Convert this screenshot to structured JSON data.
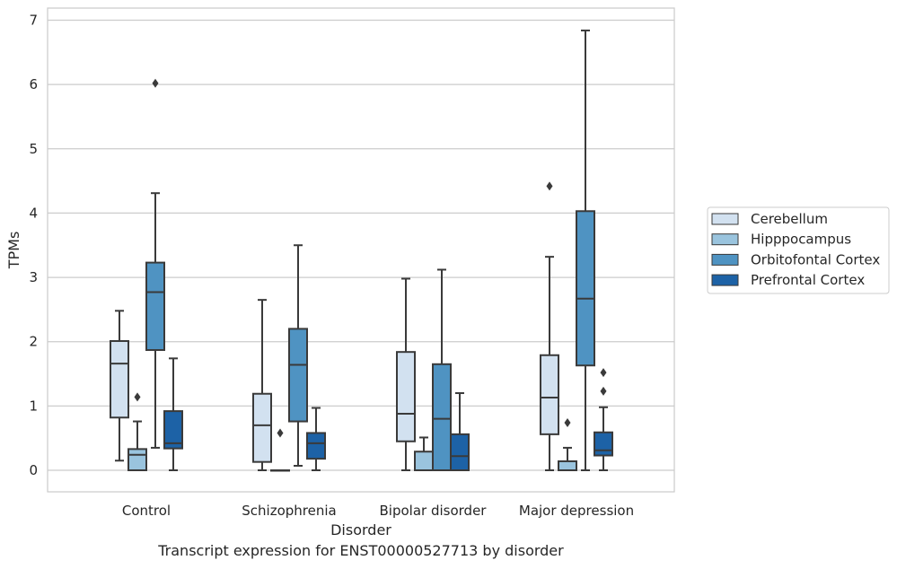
{
  "chart_data": {
    "type": "box",
    "title": "",
    "caption": "Transcript expression for ENST00000527713 by disorder",
    "xlabel": "Disorder",
    "ylabel": "TPMs",
    "ylim": [
      -0.33,
      7.18
    ],
    "yticks": [
      "0",
      "1",
      "2",
      "3",
      "4",
      "5",
      "6",
      "7"
    ],
    "categories": [
      "Control",
      "Schizophrenia",
      "Bipolar disorder",
      "Major depression"
    ],
    "grid": true,
    "legend_position": "right",
    "series": [
      {
        "name": "Cerebellum",
        "color": "#d2e1f0",
        "boxes": [
          {
            "whisker_low": 0.15,
            "q1": 0.82,
            "median": 1.66,
            "q3": 2.01,
            "whisker_high": 2.48,
            "outliers": []
          },
          {
            "whisker_low": 0.0,
            "q1": 0.13,
            "median": 0.7,
            "q3": 1.19,
            "whisker_high": 2.65,
            "outliers": []
          },
          {
            "whisker_low": 0.0,
            "q1": 0.45,
            "median": 0.88,
            "q3": 1.84,
            "whisker_high": 2.98,
            "outliers": []
          },
          {
            "whisker_low": 0.0,
            "q1": 0.56,
            "median": 1.13,
            "q3": 1.79,
            "whisker_high": 3.32,
            "outliers": [
              4.42
            ]
          }
        ]
      },
      {
        "name": "Hipppocampus",
        "color": "#9ac4de",
        "boxes": [
          {
            "whisker_low": 0.0,
            "q1": 0.0,
            "median": 0.24,
            "q3": 0.33,
            "whisker_high": 0.76,
            "outliers": [
              1.14
            ]
          },
          {
            "whisker_low": 0.0,
            "q1": 0.0,
            "median": 0.0,
            "q3": 0.0,
            "whisker_high": 0.0,
            "outliers": [
              0.58
            ]
          },
          {
            "whisker_low": 0.0,
            "q1": 0.0,
            "median": 0.0,
            "q3": 0.29,
            "whisker_high": 0.51,
            "outliers": []
          },
          {
            "whisker_low": 0.0,
            "q1": 0.0,
            "median": 0.0,
            "q3": 0.14,
            "whisker_high": 0.35,
            "outliers": [
              0.74
            ]
          }
        ]
      },
      {
        "name": "Orbitofontal Cortex",
        "color": "#4f93c2",
        "boxes": [
          {
            "whisker_low": 0.35,
            "q1": 1.87,
            "median": 2.77,
            "q3": 3.23,
            "whisker_high": 4.31,
            "outliers": [
              6.02
            ]
          },
          {
            "whisker_low": 0.07,
            "q1": 0.76,
            "median": 1.64,
            "q3": 2.2,
            "whisker_high": 3.5,
            "outliers": []
          },
          {
            "whisker_low": 0.0,
            "q1": 0.0,
            "median": 0.8,
            "q3": 1.65,
            "whisker_high": 3.12,
            "outliers": []
          },
          {
            "whisker_low": 0.0,
            "q1": 1.63,
            "median": 2.67,
            "q3": 4.03,
            "whisker_high": 6.84,
            "outliers": []
          }
        ]
      },
      {
        "name": "Prefrontal Cortex",
        "color": "#1d62a6",
        "boxes": [
          {
            "whisker_low": 0.0,
            "q1": 0.34,
            "median": 0.42,
            "q3": 0.92,
            "whisker_high": 1.74,
            "outliers": []
          },
          {
            "whisker_low": 0.0,
            "q1": 0.18,
            "median": 0.42,
            "q3": 0.58,
            "whisker_high": 0.97,
            "outliers": []
          },
          {
            "whisker_low": 0.0,
            "q1": 0.0,
            "median": 0.22,
            "q3": 0.56,
            "whisker_high": 1.2,
            "outliers": []
          },
          {
            "whisker_low": 0.0,
            "q1": 0.23,
            "median": 0.31,
            "q3": 0.59,
            "whisker_high": 0.98,
            "outliers": [
              1.23,
              1.52
            ]
          }
        ]
      }
    ]
  }
}
